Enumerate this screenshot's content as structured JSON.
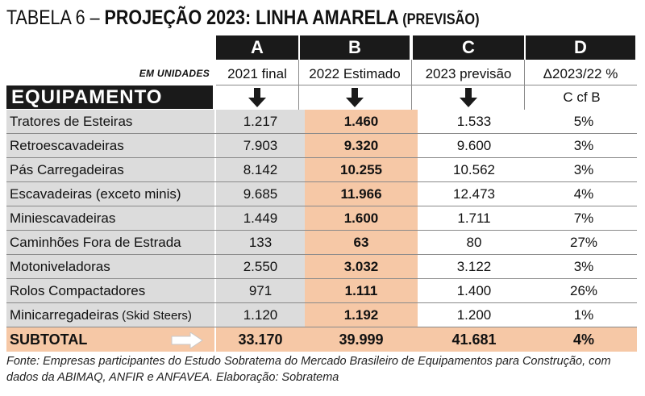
{
  "title": {
    "prefix": "TABELA 6 – ",
    "main": "PROJEÇÃO 2023: LINHA AMARELA",
    "small": " (PREVISÃO)"
  },
  "units_label": "EM UNIDADES",
  "equipment_header": "EQUIPAMENTO",
  "columns": [
    {
      "letter": "A",
      "label": "2021 final"
    },
    {
      "letter": "B",
      "label": "2022 Estimado"
    },
    {
      "letter": "C",
      "label": "2023 previsão"
    },
    {
      "letter": "D",
      "label": "Δ2023/22 %"
    }
  ],
  "column_d_note": "C cf B",
  "rows": [
    {
      "name": "Tratores de Esteiras",
      "a": "1.217",
      "b": "1.460",
      "c": "1.533",
      "d": "5%"
    },
    {
      "name": "Retroescavadeiras",
      "a": "7.903",
      "b": "9.320",
      "c": "9.600",
      "d": "3%"
    },
    {
      "name": "Pás Carregadeiras",
      "a": "8.142",
      "b": "10.255",
      "c": "10.562",
      "d": "3%"
    },
    {
      "name": "Escavadeiras (exceto minis)",
      "a": "9.685",
      "b": "11.966",
      "c": "12.473",
      "d": "4%"
    },
    {
      "name": "Miniescavadeiras",
      "a": "1.449",
      "b": "1.600",
      "c": "1.711",
      "d": "7%"
    },
    {
      "name": "Caminhões Fora de Estrada",
      "a": "133",
      "b": "63",
      "c": "80",
      "d": "27%"
    },
    {
      "name": "Motoniveladoras",
      "a": "2.550",
      "b": "3.032",
      "c": "3.122",
      "d": "3%"
    },
    {
      "name": "Rolos Compactadores",
      "a": "971",
      "b": "1.111",
      "c": "1.400",
      "d": "26%"
    },
    {
      "name": "Minicarregadeiras",
      "name_suffix": "(Skid Steers)",
      "a": "1.120",
      "b": "1.192",
      "c": "1.200",
      "d": "1%"
    }
  ],
  "subtotal": {
    "label": "SUBTOTAL",
    "a": "33.170",
    "b": "39.999",
    "c": "41.681",
    "d": "4%"
  },
  "footnote": "Fonte: Empresas participantes do Estudo Sobratema do Mercado Brasileiro de Equipamentos para Construção, com dados da ABIMAQ, ANFIR e ANFAVEA. Elaboração: Sobratema",
  "colors": {
    "header_bg": "#1a1a1a",
    "highlight": "#f6c8a6",
    "gray": "#dcdcdc"
  },
  "icons": [
    "arrow-down-icon",
    "arrow-right-icon"
  ]
}
